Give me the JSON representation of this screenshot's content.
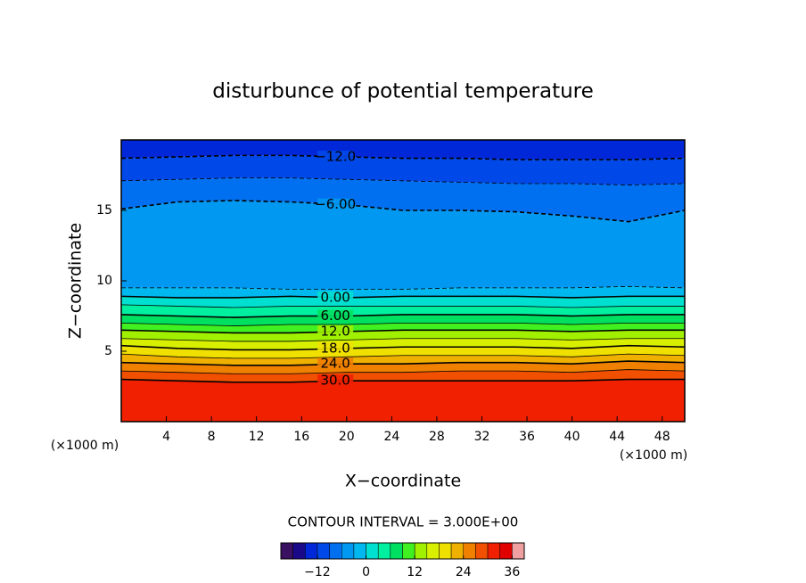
{
  "chart_data": {
    "type": "contour",
    "title": "disturbunce of potential temperature",
    "xlabel": "X−coordinate",
    "ylabel": "Z−coordinate",
    "x_unit_left": "(×1000 m)",
    "x_unit_right": "(×1000 m)",
    "contour_interval": "CONTOUR INTERVAL = 3.000E+00",
    "xlim": [
      0,
      50
    ],
    "ylim": [
      0,
      20
    ],
    "xticks": [
      4,
      8,
      12,
      16,
      20,
      24,
      28,
      32,
      36,
      40,
      44,
      48
    ],
    "yticks": [
      5,
      10,
      15
    ],
    "contour_x": [
      0,
      5,
      10,
      15,
      20,
      25,
      30,
      35,
      40,
      45,
      50
    ],
    "contours": [
      {
        "level": -12,
        "label": "−12.0",
        "y": [
          18.7,
          18.8,
          18.9,
          18.9,
          18.8,
          18.7,
          18.7,
          18.6,
          18.6,
          18.6,
          18.7
        ]
      },
      {
        "level": -9,
        "y": [
          17.1,
          17.2,
          17.3,
          17.3,
          17.2,
          17.1,
          17.0,
          16.9,
          16.9,
          16.8,
          16.9
        ]
      },
      {
        "level": -6,
        "label": "−6.00",
        "y": [
          15.1,
          15.6,
          15.7,
          15.6,
          15.4,
          15.0,
          15.0,
          14.9,
          14.6,
          14.2,
          15.0
        ]
      },
      {
        "level": -3,
        "y": [
          9.5,
          9.5,
          9.5,
          9.4,
          9.4,
          9.4,
          9.5,
          9.5,
          9.5,
          9.6,
          9.5
        ]
      },
      {
        "level": 0,
        "label": "0.00",
        "y": [
          8.9,
          8.8,
          8.8,
          8.9,
          8.8,
          8.9,
          8.9,
          8.9,
          8.8,
          8.9,
          8.9
        ]
      },
      {
        "level": 3,
        "y": [
          8.3,
          8.2,
          8.1,
          8.2,
          8.2,
          8.2,
          8.2,
          8.2,
          8.1,
          8.2,
          8.2
        ]
      },
      {
        "level": 6,
        "label": "6.00",
        "y": [
          7.6,
          7.5,
          7.4,
          7.5,
          7.5,
          7.6,
          7.6,
          7.6,
          7.5,
          7.6,
          7.6
        ]
      },
      {
        "level": 9,
        "y": [
          7.0,
          6.9,
          6.8,
          6.9,
          6.9,
          7.0,
          7.0,
          7.0,
          6.9,
          7.0,
          7.0
        ]
      },
      {
        "level": 12,
        "label": "12.0",
        "y": [
          6.5,
          6.4,
          6.3,
          6.3,
          6.4,
          6.5,
          6.5,
          6.5,
          6.4,
          6.5,
          6.5
        ]
      },
      {
        "level": 15,
        "y": [
          5.9,
          5.8,
          5.7,
          5.7,
          5.8,
          5.9,
          5.9,
          5.9,
          5.8,
          5.9,
          5.9
        ]
      },
      {
        "level": 18,
        "label": "18.0",
        "y": [
          5.4,
          5.2,
          5.1,
          5.1,
          5.2,
          5.3,
          5.3,
          5.3,
          5.2,
          5.4,
          5.3
        ]
      },
      {
        "level": 21,
        "y": [
          4.8,
          4.6,
          4.5,
          4.5,
          4.6,
          4.7,
          4.7,
          4.7,
          4.6,
          4.8,
          4.7
        ]
      },
      {
        "level": 24,
        "label": "24.0",
        "y": [
          4.2,
          4.1,
          4.0,
          4.0,
          4.1,
          4.1,
          4.2,
          4.2,
          4.1,
          4.3,
          4.2
        ]
      },
      {
        "level": 27,
        "y": [
          3.6,
          3.5,
          3.4,
          3.4,
          3.5,
          3.5,
          3.6,
          3.6,
          3.5,
          3.7,
          3.6
        ]
      },
      {
        "level": 30,
        "label": "30.0",
        "y": [
          3.0,
          2.9,
          2.8,
          2.8,
          2.9,
          2.9,
          2.9,
          2.9,
          2.9,
          3.0,
          3.0
        ]
      }
    ],
    "colorbar": {
      "lim": [
        -21,
        39
      ],
      "colors": [
        "#3a1060",
        "#1a0a8a",
        "#0028d8",
        "#0048e8",
        "#0070f0",
        "#0098f0",
        "#00b8f0",
        "#00e0d0",
        "#00f0a0",
        "#00e060",
        "#40f020",
        "#a0f000",
        "#d8f000",
        "#f0e000",
        "#f0b000",
        "#f08000",
        "#f05000",
        "#f02000",
        "#e00000",
        "#f0a0a0"
      ],
      "ticks": [
        {
          "value": -12,
          "label": "−12"
        },
        0,
        12,
        24,
        36
      ]
    }
  }
}
